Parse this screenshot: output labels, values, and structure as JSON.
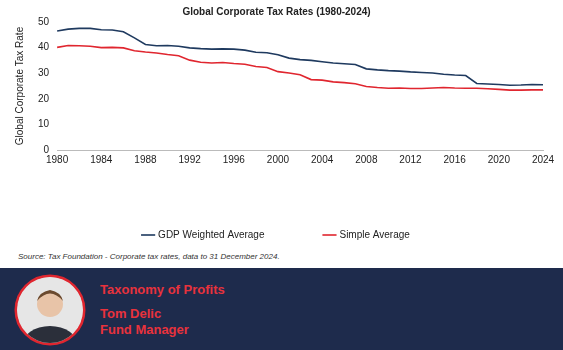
{
  "chart_data": {
    "type": "line",
    "title": "Global Corporate Tax Rates (1980-2024)",
    "y_label": "Global Corporate Tax Rate",
    "x": [
      1980,
      1981,
      1982,
      1983,
      1984,
      1985,
      1986,
      1987,
      1988,
      1989,
      1990,
      1991,
      1992,
      1993,
      1994,
      1995,
      1996,
      1997,
      1998,
      1999,
      2000,
      2001,
      2002,
      2003,
      2004,
      2005,
      2006,
      2007,
      2008,
      2009,
      2010,
      2011,
      2012,
      2013,
      2014,
      2015,
      2016,
      2017,
      2018,
      2019,
      2020,
      2021,
      2022,
      2023,
      2024
    ],
    "series": [
      {
        "name": "GDP Weighted Average",
        "color": "#1f3a5f",
        "values": [
          46.5,
          47.2,
          47.5,
          47.5,
          47.0,
          46.9,
          46.2,
          43.8,
          41.2,
          40.7,
          40.8,
          40.5,
          39.9,
          39.6,
          39.4,
          39.5,
          39.4,
          39.0,
          38.2,
          38.0,
          37.2,
          35.9,
          35.3,
          35.0,
          34.5,
          34.0,
          33.7,
          33.4,
          31.7,
          31.3,
          31.0,
          30.8,
          30.5,
          30.3,
          30.1,
          29.6,
          29.3,
          29.1,
          26.0,
          25.8,
          25.6,
          25.3,
          25.4,
          25.6,
          25.5
        ]
      },
      {
        "name": "Simple Average",
        "color": "#e0262f",
        "values": [
          40.1,
          40.8,
          40.7,
          40.5,
          40.0,
          40.1,
          39.9,
          38.8,
          38.3,
          37.9,
          37.3,
          36.8,
          35.1,
          34.3,
          34.0,
          34.2,
          33.8,
          33.5,
          32.6,
          32.2,
          30.6,
          30.1,
          29.4,
          27.5,
          27.3,
          26.6,
          26.3,
          25.9,
          24.8,
          24.4,
          24.1,
          24.2,
          24.0,
          24.0,
          24.2,
          24.4,
          24.2,
          24.1,
          24.1,
          23.9,
          23.7,
          23.4,
          23.4,
          23.5,
          23.5
        ]
      }
    ],
    "xlim": [
      1980,
      2024
    ],
    "xticks": [
      1980,
      1984,
      1988,
      1992,
      1996,
      2000,
      2004,
      2008,
      2012,
      2016,
      2020,
      2024
    ],
    "ylim": [
      0,
      50
    ],
    "yticks": [
      0,
      10,
      20,
      30,
      40,
      50
    ],
    "grid": false,
    "legend": "bottom"
  },
  "source": "Source: Tax Foundation - Corporate tax rates, data to 31 December 2024.",
  "banner": {
    "title": "Taxonomy of Profits",
    "name": "Tom Delic",
    "role": "Fund Manager"
  }
}
